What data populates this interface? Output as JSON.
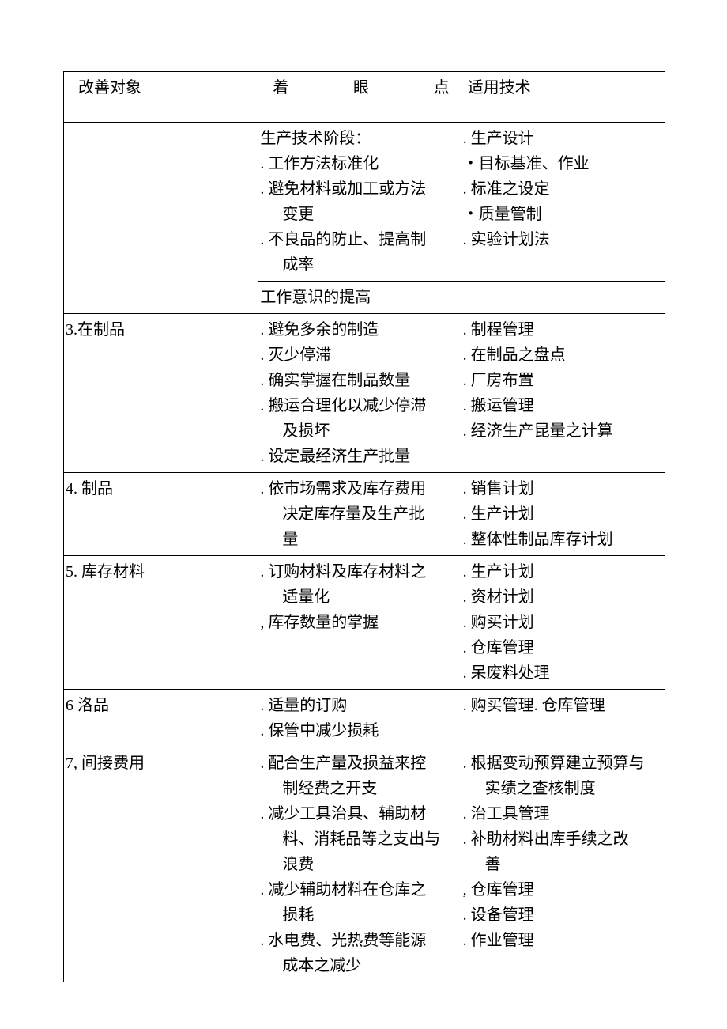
{
  "header": {
    "col1": "改善对象",
    "col2_chars": [
      "着",
      "眼",
      "点"
    ],
    "col3": "适用技术"
  },
  "rows": {
    "r2": {
      "col1": "",
      "col2_lines": [
        "生产技术阶段：",
        ". 工作方法标准化",
        ". 避免材料或加工或方法",
        "  变更",
        ". 不良品的防止、提高制",
        "  成率"
      ],
      "col3_lines": [
        "",
        ". 生产设计",
        "・目标基准、作业",
        ". 标准之设定",
        "・质量管制",
        ". 实验计划法"
      ]
    },
    "r2b": {
      "col2": "工作意识的提高",
      "col3": ""
    },
    "r3": {
      "col1": "3.在制品",
      "col2_lines": [
        ". 避免多余的制造",
        ". 灭少停滞",
        ". 确实掌握在制品数量",
        ". 搬运合理化以减少停滞",
        "  及损坏",
        ". 设定最经济生产批量"
      ],
      "col3_lines": [
        "",
        ". 制程管理",
        ". 在制品之盘点",
        ". 厂房布置",
        ". 搬运管理",
        ". 经济生产昆量之计算"
      ]
    },
    "r4": {
      "col1": "4. 制品",
      "col2_lines": [
        ". 依市场需求及库存费用",
        "  决定库存量及生产批",
        "  量"
      ],
      "col3_lines": [
        ". 销售计划",
        ". 生产计划",
        ". 整体性制品库存计划"
      ]
    },
    "r5": {
      "col1": "5. 库存材料",
      "col2_lines": [
        ". 订购材料及库存材料之",
        "  适量化",
        ", 库存数量的掌握"
      ],
      "col3_lines": [
        ". 生产计划",
        ". 资材计划",
        ". 购买计划",
        ". 仓库管理",
        ". 呆废料处理"
      ]
    },
    "r6": {
      "col1": "6 洛品",
      "col2_lines": [
        ". 适量的订购",
        ". 保管中减少损耗"
      ],
      "col3_lines": [
        "",
        ". 购买管理. 仓库管理"
      ]
    },
    "r7": {
      "col1": "7, 间接费用",
      "col2_lines": [
        ". 配合生产量及损益来控",
        "  制经费之开支",
        ". 减少工具治具、辅助材",
        "  料、消耗品等之支出与",
        "  浪费",
        ". 减少辅助材料在仓库之",
        "  损耗",
        ". 水电费、光热费等能源",
        "  成本之减少"
      ],
      "col3_lines": [
        ". 根据变动预算建立预算与",
        "  实绩之查核制度",
        ". 治工具管理",
        ". 补助材料出库手续之改",
        "  善",
        ", 仓库管理",
        "",
        ". 设备管理",
        ". 作业管理"
      ]
    }
  }
}
